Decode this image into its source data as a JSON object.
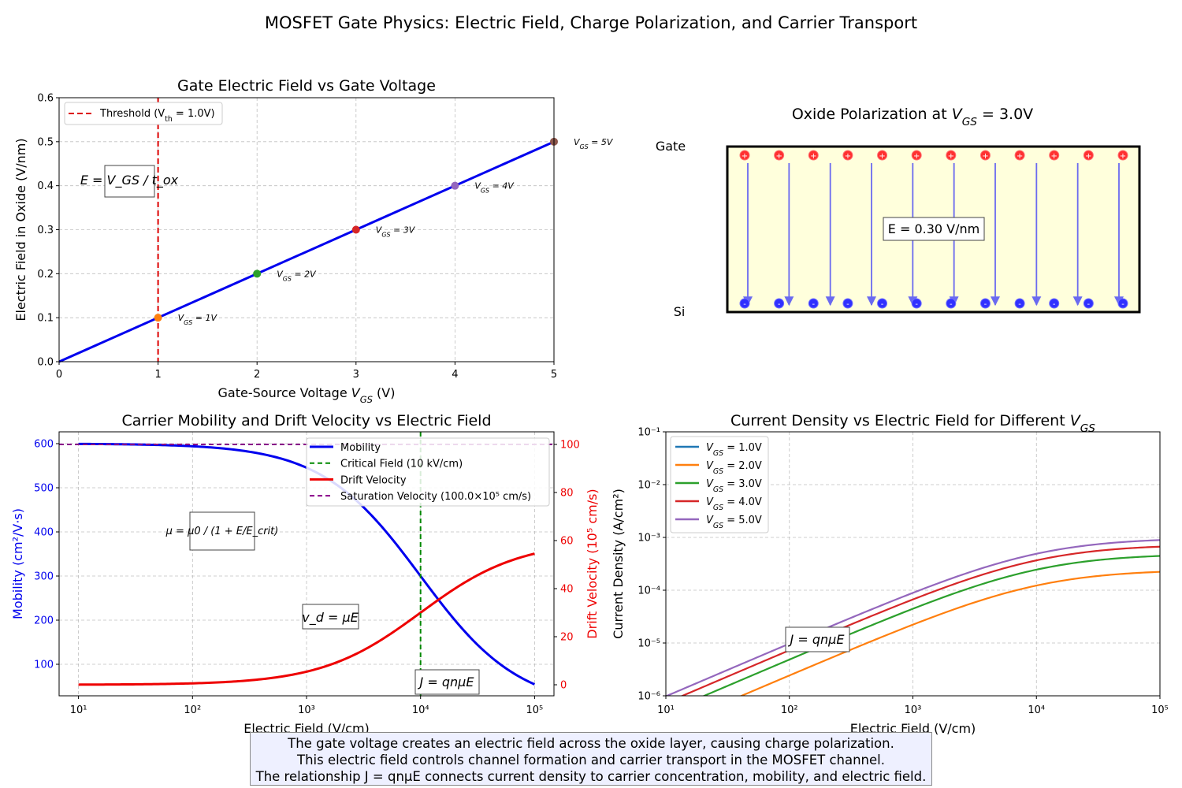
{
  "suptitle": "MOSFET Gate Physics: Electric Field, Charge Polarization, and Carrier Transport",
  "caption": [
    "The gate voltage creates an electric field across the oxide layer, causing charge polarization.",
    "This electric field controls channel formation and carrier transport in the MOSFET channel.",
    "The relationship J = qnμE connects current density to carrier concentration, mobility, and electric field."
  ],
  "chart_data": [
    {
      "type": "line",
      "title": "Gate Electric Field vs Gate Voltage",
      "xlabel": "Gate-Source Voltage V_GS (V)",
      "ylabel": "Electric Field in Oxide (V/nm)",
      "xlim": [
        0,
        5
      ],
      "ylim": [
        0,
        0.6
      ],
      "xticks": [
        "0",
        "1",
        "2",
        "3",
        "4",
        "5"
      ],
      "yticks": [
        "0.0",
        "0.1",
        "0.2",
        "0.3",
        "0.4",
        "0.5",
        "0.6"
      ],
      "grid": true,
      "legend": {
        "placement": "upper-left",
        "entries": [
          "Threshold (V_th = 1.0V)"
        ]
      },
      "series": [
        {
          "x": [
            0,
            5
          ],
          "y": [
            0,
            0.5
          ],
          "color": "#0000ee"
        }
      ],
      "threshold": {
        "x": 1.0,
        "color": "#dd0000"
      },
      "points": [
        {
          "x": 1,
          "y": 0.1,
          "label": "V_GS = 1V",
          "color": "#ff7f0e"
        },
        {
          "x": 2,
          "y": 0.2,
          "label": "V_GS = 2V",
          "color": "#2ca02c"
        },
        {
          "x": 3,
          "y": 0.3,
          "label": "V_GS = 3V",
          "color": "#d62728"
        },
        {
          "x": 4,
          "y": 0.4,
          "label": "V_GS = 4V",
          "color": "#9467bd"
        },
        {
          "x": 5,
          "y": 0.5,
          "label": "V_GS = 5V",
          "color": "#8c564b"
        }
      ],
      "annotation": "E = V_GS / t_ox"
    },
    {
      "type": "diagram",
      "title": "Oxide Polarization at V_GS = 3.0V",
      "top_label": "Gate",
      "bottom_label": "Si",
      "top_charge": "+",
      "bottom_charge": "-",
      "charge_count": 12,
      "field_lines": 10,
      "field_label": "E = 0.30 V/nm",
      "colors": {
        "oxide": "#ffffdc",
        "positive": "#ff3030",
        "negative": "#3030ff",
        "field": "#6a6af0"
      }
    },
    {
      "type": "line",
      "title": "Carrier Mobility and Drift Velocity vs Electric Field",
      "xlabel": "Electric Field (V/cm)",
      "ylabel": "Mobility (cm²/V·s)",
      "ylabel_right": "Drift Velocity (10⁵ cm/s)",
      "xscale": "log",
      "xlim": [
        10,
        100000
      ],
      "xticks": [
        "10¹",
        "10²",
        "10³",
        "10⁴",
        "10⁵"
      ],
      "yticks_left": [
        "100",
        "200",
        "300",
        "400",
        "500",
        "600"
      ],
      "yticks_right": [
        "0",
        "20",
        "40",
        "60",
        "80",
        "100"
      ],
      "grid": true,
      "legend": {
        "placement": "upper-right",
        "entries": [
          "Mobility",
          "Critical Field (10 kV/cm)",
          "Drift Velocity",
          "Saturation Velocity (100.0×10⁵ cm/s)"
        ]
      },
      "model": {
        "mu0": 600,
        "E_crit": 10000,
        "vsat": 100
      },
      "series": [
        {
          "name": "Mobility",
          "axis": "left",
          "color": "#0000ee",
          "x": [
            10,
            100,
            1000,
            10000,
            100000
          ],
          "y": [
            599.4,
            594.1,
            545.5,
            300.0,
            54.5
          ]
        },
        {
          "name": "Drift Velocity",
          "axis": "right",
          "color": "#ee0000",
          "x": [
            10,
            100,
            1000,
            10000,
            100000
          ],
          "y": [
            0.06,
            0.59,
            5.45,
            30.0,
            54.5
          ]
        }
      ],
      "critical_field": 10000,
      "saturation_velocity": 100,
      "annotations": [
        "μ = μ0 / (1 + E/E_crit)",
        "v_d = μE",
        "J = qnμE"
      ]
    },
    {
      "type": "line",
      "title": "Current Density vs Electric Field for Different V_GS",
      "xlabel": "Electric Field (V/cm)",
      "ylabel": "Current Density (A/cm²)",
      "xscale": "log",
      "yscale": "log",
      "xlim": [
        10,
        100000
      ],
      "ylim": [
        1e-06,
        0.1
      ],
      "xticks": [
        "10¹",
        "10²",
        "10³",
        "10⁴",
        "10⁵"
      ],
      "yticks": [
        "10⁻⁶",
        "10⁻⁵",
        "10⁻⁴",
        "10⁻³",
        "10⁻²",
        "10⁻¹"
      ],
      "grid": true,
      "legend": {
        "placement": "upper-left"
      },
      "series": [
        {
          "name": "V_GS = 1.0V",
          "color": "#1f77b4",
          "saturation": 0
        },
        {
          "name": "V_GS = 2.0V",
          "color": "#ff7f0e",
          "saturation": 0.000245
        },
        {
          "name": "V_GS = 3.0V",
          "color": "#2ca02c",
          "saturation": 0.00049
        },
        {
          "name": "V_GS = 4.0V",
          "color": "#d62728",
          "saturation": 0.000735
        },
        {
          "name": "V_GS = 5.0V",
          "color": "#9467bd",
          "saturation": 0.00098
        }
      ],
      "annotation": "J = qnμE"
    }
  ]
}
